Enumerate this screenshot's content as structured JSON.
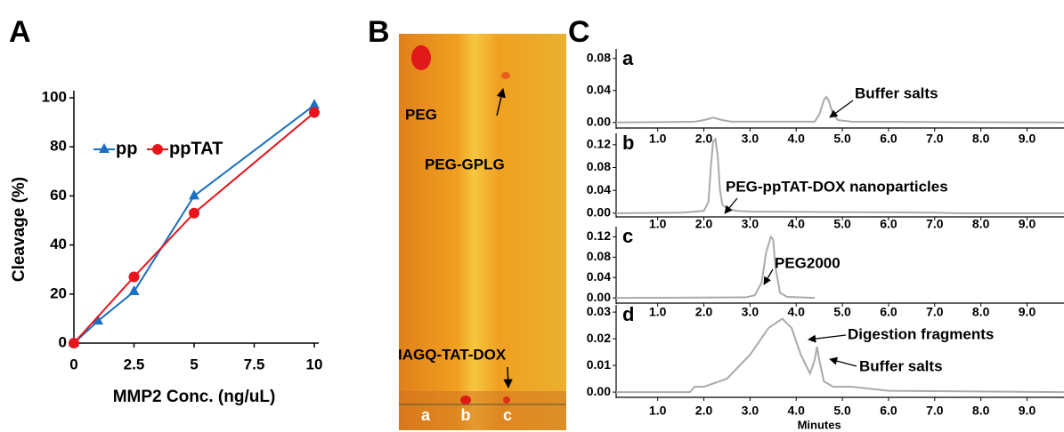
{
  "panel_labels": [
    "A",
    "B",
    "C"
  ],
  "plate": {
    "labels": [
      "PEG",
      "PEG-GPLG",
      "IAGQ-TAT-DOX"
    ],
    "lanes": [
      "a",
      "b",
      "c"
    ]
  },
  "chart_data": [
    {
      "type": "line",
      "xlabel": "MMP2 Conc. (ng/uL)",
      "ylabel": "Cleavage (%)",
      "xlim": [
        0,
        10
      ],
      "xticks": [
        0,
        2.5,
        5,
        7.5,
        10
      ],
      "ylim": [
        0,
        100
      ],
      "yticks": [
        0,
        20,
        40,
        60,
        80,
        100
      ],
      "series": [
        {
          "name": "pp",
          "color": "#1a6fc0",
          "marker": "triangle",
          "x": [
            0,
            1,
            2.5,
            5,
            10
          ],
          "values": [
            0,
            9,
            21,
            60,
            97
          ]
        },
        {
          "name": "ppTAT",
          "color": "#e8141c",
          "marker": "circle",
          "x": [
            0,
            2.5,
            5,
            10
          ],
          "values": [
            0,
            27,
            53,
            94
          ]
        }
      ]
    },
    {
      "type": "chromatogram",
      "label": "a",
      "color": "#aaaaaa",
      "xlim": [
        0.1,
        9.8
      ],
      "ylim": [
        -0.008,
        0.092
      ],
      "yticks": [
        {
          "value": 0,
          "label": "0.00"
        },
        0.04,
        0.08
      ],
      "xticks": [
        {
          "value": 1,
          "label": "1.0"
        },
        {
          "value": 2,
          "label": "2.0"
        },
        {
          "value": 3,
          "label": "3.0"
        },
        {
          "value": 4,
          "label": "4.0"
        },
        {
          "value": 5,
          "label": "5.0"
        },
        {
          "value": 6,
          "label": "6.0"
        },
        {
          "value": 7,
          "label": "7.0"
        },
        {
          "value": 8,
          "label": "8.0"
        },
        {
          "value": 9,
          "label": "9.0"
        }
      ],
      "x": [
        0.1,
        1.8,
        2.0,
        2.2,
        2.4,
        2.6,
        4.4,
        4.5,
        4.6,
        4.65,
        4.7,
        4.8,
        4.9,
        5.2,
        9.8
      ],
      "values": [
        0,
        0.001,
        0.003,
        0.006,
        0.003,
        0.001,
        0.001,
        0.01,
        0.028,
        0.032,
        0.028,
        0.01,
        0.003,
        0.001,
        0
      ],
      "annotations": [
        "Buffer salts"
      ]
    },
    {
      "type": "chromatogram",
      "label": "b",
      "color": "#aaaaaa",
      "xlim": [
        0.1,
        9.8
      ],
      "ylim": [
        -0.008,
        0.14
      ],
      "yticks": [
        {
          "value": 0,
          "label": "0.00"
        },
        0.04,
        0.08,
        0.12
      ],
      "xticks": [
        {
          "value": 1,
          "label": "1.0"
        },
        {
          "value": 2,
          "label": "2.0"
        },
        {
          "value": 3,
          "label": "3.0"
        },
        {
          "value": 4,
          "label": "4.0"
        },
        {
          "value": 5,
          "label": "5.0"
        },
        {
          "value": 6,
          "label": "6.0"
        },
        {
          "value": 7,
          "label": "7.0"
        },
        {
          "value": 8,
          "label": "8.0"
        },
        {
          "value": 9,
          "label": "9.0"
        }
      ],
      "x": [
        0.1,
        1.5,
        2.0,
        2.1,
        2.15,
        2.2,
        2.25,
        2.3,
        2.35,
        2.4,
        2.5,
        2.7,
        3.0,
        5,
        7,
        7.5,
        9.8
      ],
      "values": [
        0,
        0.001,
        0.004,
        0.02,
        0.08,
        0.125,
        0.13,
        0.1,
        0.04,
        0.015,
        0.008,
        0.004,
        0.003,
        0.002,
        0.001,
        0,
        0
      ],
      "annotations": [
        "PEG-ppTAT-DOX nanoparticles"
      ]
    },
    {
      "type": "chromatogram",
      "label": "c",
      "color": "#aaaaaa",
      "xlim": [
        0.1,
        9.8
      ],
      "ylim": [
        -0.012,
        0.14
      ],
      "yticks": [
        {
          "value": 0,
          "label": "0.00"
        },
        0.04,
        0.08,
        0.12
      ],
      "xticks": [
        {
          "value": 1,
          "label": "1.0"
        },
        {
          "value": 2,
          "label": "2.0"
        },
        {
          "value": 3,
          "label": "3.0"
        },
        {
          "value": 4,
          "label": "4.0"
        },
        {
          "value": 5,
          "label": "5.0"
        },
        {
          "value": 6,
          "label": "6.0"
        },
        {
          "value": 7,
          "label": "7.0"
        },
        {
          "value": 8,
          "label": "8.0"
        },
        {
          "value": 9,
          "label": "9.0"
        }
      ],
      "x": [
        0.1,
        2.9,
        3.1,
        3.25,
        3.35,
        3.45,
        3.5,
        3.55,
        3.65,
        3.8,
        4.4
      ],
      "values": [
        0,
        0.001,
        0.005,
        0.03,
        0.09,
        0.12,
        0.115,
        0.06,
        0.01,
        0.002,
        0
      ],
      "annotations": [
        "PEG2000"
      ]
    },
    {
      "type": "chromatogram",
      "label": "d",
      "color": "#aaaaaa",
      "xlim": [
        0.1,
        9.8
      ],
      "ylim": [
        -0.0023,
        0.0327
      ],
      "xlabel": "Minutes",
      "yticks": [
        {
          "value": 0,
          "label": "0.00"
        },
        0.01,
        0.02,
        0.03
      ],
      "xticks": [
        {
          "value": 1,
          "label": "1.0"
        },
        {
          "value": 2,
          "label": "2.0"
        },
        {
          "value": 3,
          "label": "3.0"
        },
        {
          "value": 4,
          "label": "4.0"
        },
        {
          "value": 5,
          "label": "5.0"
        },
        {
          "value": 6,
          "label": "6.0"
        },
        {
          "value": 7,
          "label": "7.0"
        },
        {
          "value": 8,
          "label": "8.0"
        },
        {
          "value": 9,
          "label": "9.0"
        }
      ],
      "x": [
        0.1,
        1.7,
        1.8,
        2.0,
        2.5,
        3.0,
        3.4,
        3.7,
        3.9,
        4.1,
        4.3,
        4.4,
        4.45,
        4.5,
        4.6,
        4.8,
        5.2,
        6,
        9.8
      ],
      "values": [
        0,
        0,
        0.002,
        0.002,
        0.005,
        0.014,
        0.024,
        0.0275,
        0.024,
        0.014,
        0.007,
        0.012,
        0.017,
        0.012,
        0.004,
        0.002,
        0.002,
        0.0005,
        0
      ],
      "annotations": [
        "Digestion fragments",
        "Buffer salts"
      ]
    }
  ]
}
